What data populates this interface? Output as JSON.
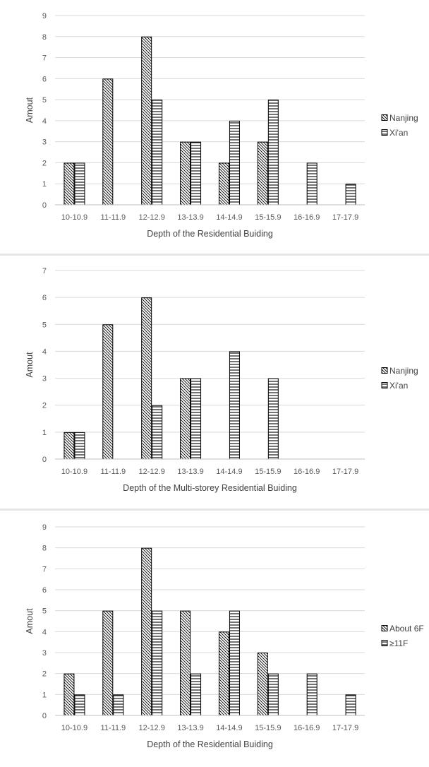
{
  "chart_data": [
    {
      "type": "bar",
      "title": "",
      "xlabel": "Depth of the Residential Buiding",
      "ylabel": "Amout",
      "ylim": [
        0,
        9
      ],
      "yticks": [
        "0",
        "1",
        "2",
        "3",
        "4",
        "5",
        "6",
        "7",
        "8",
        "9"
      ],
      "categories": [
        "10-10.9",
        "11-11.9",
        "12-12.9",
        "13-13.9",
        "14-14.9",
        "15-15.9",
        "16-16.9",
        "17-17.9"
      ],
      "series": [
        {
          "name": "Nanjing",
          "pattern": "diagonal",
          "values": [
            2,
            6,
            8,
            3,
            2,
            3,
            0,
            0
          ]
        },
        {
          "name": "Xi'an",
          "pattern": "horizontal",
          "values": [
            2,
            0,
            5,
            3,
            4,
            5,
            2,
            1
          ]
        }
      ],
      "grid": true,
      "legend_position": "right"
    },
    {
      "type": "bar",
      "title": "",
      "xlabel": "Depth of the Multi-storey Residential Buiding",
      "ylabel": "Amout",
      "ylim": [
        0,
        7
      ],
      "yticks": [
        "0",
        "1",
        "2",
        "3",
        "4",
        "5",
        "6",
        "7"
      ],
      "categories": [
        "10-10.9",
        "11-11.9",
        "12-12.9",
        "13-13.9",
        "14-14.9",
        "15-15.9",
        "16-16.9",
        "17-17.9"
      ],
      "series": [
        {
          "name": "Nanjing",
          "pattern": "diagonal",
          "values": [
            1,
            5,
            6,
            3,
            0,
            0,
            0,
            0
          ]
        },
        {
          "name": "Xi'an",
          "pattern": "horizontal",
          "values": [
            1,
            0,
            2,
            3,
            4,
            3,
            0,
            0
          ]
        }
      ],
      "grid": true,
      "legend_position": "right"
    },
    {
      "type": "bar",
      "title": "",
      "xlabel": "Depth of the Residential Buiding",
      "ylabel": "Amout",
      "ylim": [
        0,
        9
      ],
      "yticks": [
        "0",
        "1",
        "2",
        "3",
        "4",
        "5",
        "6",
        "7",
        "8",
        "9"
      ],
      "categories": [
        "10-10.9",
        "11-11.9",
        "12-12.9",
        "13-13.9",
        "14-14.9",
        "15-15.9",
        "16-16.9",
        "17-17.9"
      ],
      "series": [
        {
          "name": "About 6F",
          "pattern": "diagonal",
          "values": [
            2,
            5,
            8,
            5,
            4,
            3,
            0,
            0
          ]
        },
        {
          "name": "≥11F",
          "pattern": "horizontal",
          "values": [
            1,
            1,
            5,
            2,
            5,
            2,
            2,
            1
          ]
        }
      ],
      "grid": true,
      "legend_position": "right"
    }
  ],
  "colors": {
    "bar_stroke": "#000000",
    "hatch": "#000000",
    "grid": "#d9d9d9",
    "axis": "#bfbfbf",
    "text": "#595959"
  }
}
